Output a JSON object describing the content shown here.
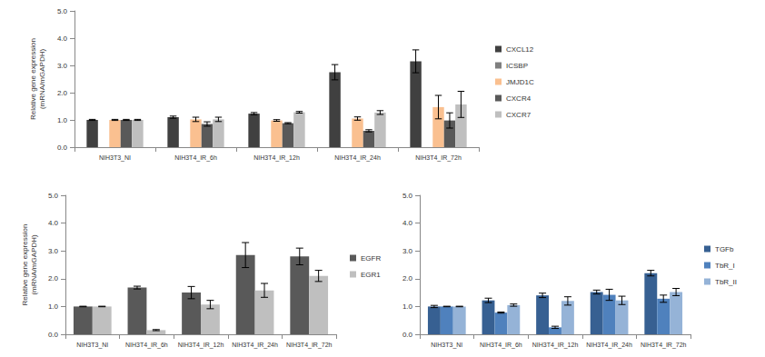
{
  "chart_data": [
    {
      "type": "bar",
      "ylabel": "Relative gene expression\n(mRNA/mGAPDH)",
      "categories": [
        "NIH3T3_NI",
        "NIH3T4_IR_6h",
        "NIH3T4_IR_12h",
        "NIH3T4_IR_24h",
        "NIH3T4_IR_72h"
      ],
      "series": [
        {
          "name": "CXCL12",
          "color": "#404040",
          "values": [
            1.0,
            1.1,
            1.23,
            2.75,
            3.15
          ],
          "errors": [
            0.02,
            0.04,
            0.04,
            0.28,
            0.42
          ]
        },
        {
          "name": "ICSBP",
          "color": "#7f7f7f",
          "values": [
            null,
            null,
            null,
            null,
            null
          ],
          "errors": [
            null,
            null,
            null,
            null,
            null
          ]
        },
        {
          "name": "JMJD1C",
          "color": "#fac090",
          "values": [
            1.0,
            1.02,
            0.98,
            1.05,
            1.47
          ],
          "errors": [
            0.02,
            0.08,
            0.03,
            0.06,
            0.43
          ]
        },
        {
          "name": "CXCR4",
          "color": "#595959",
          "values": [
            1.0,
            0.85,
            0.88,
            0.6,
            0.98
          ],
          "errors": [
            0.02,
            0.08,
            0.02,
            0.04,
            0.28
          ]
        },
        {
          "name": "CXCR7",
          "color": "#bfbfbf",
          "values": [
            1.0,
            1.02,
            1.28,
            1.27,
            1.57
          ],
          "errors": [
            0.02,
            0.08,
            0.03,
            0.07,
            0.48
          ]
        }
      ],
      "ylim": [
        0,
        5
      ],
      "yticks": [
        {
          "value": 0,
          "label": "0.0"
        },
        {
          "value": 1,
          "label": "1.0"
        },
        {
          "value": 2,
          "label": "2.0"
        },
        {
          "value": 3,
          "label": "3.0"
        },
        {
          "value": 4,
          "label": "4.0"
        },
        {
          "value": 5,
          "label": "5.0"
        }
      ],
      "grid": false,
      "legend": "right"
    },
    {
      "type": "bar",
      "ylabel": "Relative gene expression\n(mRNA/mGAPDH)",
      "categories": [
        "NIH3T3_NI",
        "NIH3T4_IR_6h",
        "NIH3T4_IR_12h",
        "NIH3T4_IR_24h",
        "NIH3T4_IR_72h"
      ],
      "series": [
        {
          "name": "EGFR",
          "color": "#595959",
          "values": [
            1.0,
            1.68,
            1.5,
            2.85,
            2.8
          ],
          "errors": [
            0.01,
            0.05,
            0.22,
            0.45,
            0.3
          ]
        },
        {
          "name": "EGR1",
          "color": "#bfbfbf",
          "values": [
            1.0,
            0.15,
            1.07,
            1.58,
            2.1
          ],
          "errors": [
            0.01,
            0.02,
            0.15,
            0.25,
            0.2
          ]
        }
      ],
      "ylim": [
        0,
        5
      ],
      "yticks": [
        {
          "value": 0,
          "label": "0.0"
        },
        {
          "value": 1,
          "label": "1.0"
        },
        {
          "value": 2,
          "label": "2.0"
        },
        {
          "value": 3,
          "label": "3.0"
        },
        {
          "value": 4,
          "label": "4.0"
        },
        {
          "value": 5,
          "label": "5.0"
        }
      ],
      "grid": false,
      "legend": "right"
    },
    {
      "type": "bar",
      "categories": [
        "NIH3T3_NI",
        "NIH3T4_IR_6h",
        "NIH3T4_IR_12h",
        "NIH3T4_IR_24h",
        "NIH3T4_IR_72h"
      ],
      "series": [
        {
          "name": "TGFb",
          "color": "#376092",
          "values": [
            1.0,
            1.22,
            1.4,
            1.52,
            2.2
          ],
          "errors": [
            0.04,
            0.08,
            0.08,
            0.07,
            0.1
          ]
        },
        {
          "name": "TbR_I",
          "color": "#4f81bd",
          "values": [
            1.0,
            0.78,
            0.25,
            1.42,
            1.28
          ],
          "errors": [
            0.01,
            0.02,
            0.04,
            0.2,
            0.13
          ]
        },
        {
          "name": "TbR_II",
          "color": "#95b3d7",
          "values": [
            1.0,
            1.05,
            1.2,
            1.22,
            1.52
          ],
          "errors": [
            0.01,
            0.04,
            0.15,
            0.15,
            0.13
          ]
        }
      ],
      "ylim": [
        0,
        5
      ],
      "yticks": [
        {
          "value": 0,
          "label": "0.0"
        },
        {
          "value": 1,
          "label": "1.0"
        },
        {
          "value": 2,
          "label": "2.0"
        },
        {
          "value": 3,
          "label": "3.0"
        },
        {
          "value": 4,
          "label": "4.0"
        },
        {
          "value": 5,
          "label": "5.0"
        }
      ],
      "grid": false,
      "legend": "right"
    }
  ]
}
